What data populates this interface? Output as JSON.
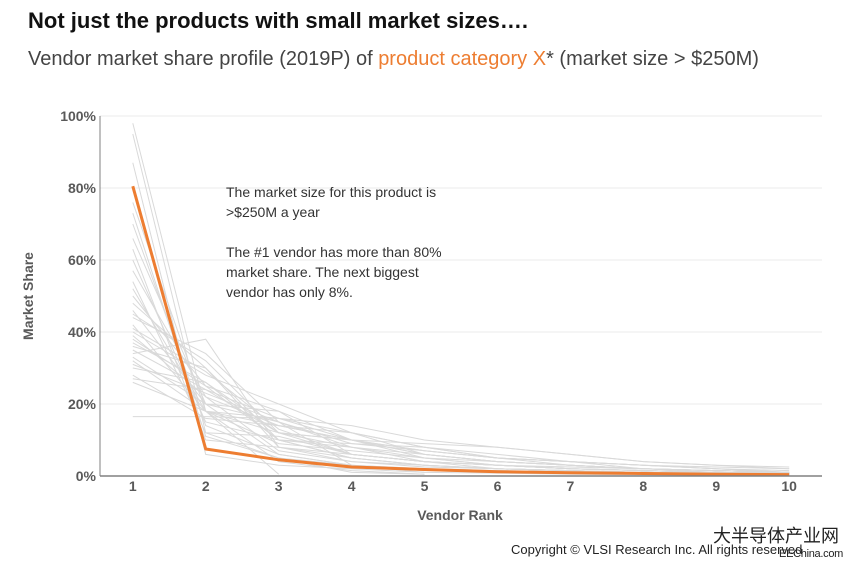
{
  "header": {
    "title": "Not just the products with small market sizes….",
    "subtitle_pre": "Vendor market share profile (2019P) of ",
    "subtitle_highlight": "product category X",
    "subtitle_post": "* (market size > $250M)"
  },
  "annotation": {
    "line1": "The market size for this product is >$250M a year",
    "line2": "The #1 vendor has more than 80% market share. The next biggest vendor has only 8%."
  },
  "footer": {
    "copyright": "Copyright © VLSI Research Inc. All rights reserved",
    "watermark": "大半导体产业网",
    "watermark_sub": "EEChina.com"
  },
  "colors": {
    "highlight": "#ED7D31",
    "background_series": "#D9D9D9",
    "grid": "#EBEBEB",
    "axis": "#808080"
  },
  "chart_data": {
    "type": "line",
    "title": "Vendor market share profile (2019P) of product category X* (market size > $250M)",
    "xlabel": "Vendor Rank",
    "ylabel": "Market Share",
    "x": [
      1,
      2,
      3,
      4,
      5,
      6,
      7,
      8,
      9,
      10
    ],
    "xlim": [
      0.55,
      10.45
    ],
    "ylim": [
      0,
      100
    ],
    "yticks": [
      0,
      20,
      40,
      60,
      80,
      100
    ],
    "ytick_labels": [
      "0%",
      "20%",
      "40%",
      "60%",
      "80%",
      "100%"
    ],
    "xtick_labels": [
      "1",
      "2",
      "3",
      "4",
      "5",
      "6",
      "7",
      "8",
      "9",
      "10"
    ],
    "grid": true,
    "highlight_series": {
      "name": "Product category X",
      "values": [
        80.5,
        7.5,
        4.5,
        2.5,
        1.8,
        1.2,
        0.9,
        0.7,
        0.5,
        0.4
      ]
    },
    "background_series": [
      {
        "values": [
          98,
          18,
          0.5,
          null,
          null,
          null,
          null,
          null,
          null,
          null
        ]
      },
      {
        "values": [
          95,
          12,
          5,
          1,
          0.5,
          null,
          null,
          null,
          null,
          null
        ]
      },
      {
        "values": [
          87,
          6,
          3,
          2,
          1,
          0.8,
          0.5,
          0.3,
          0.2,
          0.1
        ]
      },
      {
        "values": [
          76,
          18,
          4,
          1.5,
          0.5,
          null,
          null,
          null,
          null,
          null
        ]
      },
      {
        "values": [
          73,
          11,
          5,
          3,
          2,
          1.5,
          1.2,
          1,
          0.7,
          0.5
        ]
      },
      {
        "values": [
          70,
          14,
          6,
          3,
          2,
          1.5,
          1,
          0.8,
          0.6,
          0.4
        ]
      },
      {
        "values": [
          66,
          20,
          6,
          3,
          1.5,
          1,
          0.8,
          0.5,
          0.4,
          0.3
        ]
      },
      {
        "values": [
          63,
          10,
          8,
          6,
          4,
          3,
          2,
          1.5,
          1,
          0.8
        ]
      },
      {
        "values": [
          60,
          15,
          10,
          5,
          3,
          2,
          1.5,
          1,
          0.8,
          0.5
        ]
      },
      {
        "values": [
          57,
          22,
          7,
          4,
          2.5,
          2,
          1.5,
          1,
          0.8,
          0.6
        ]
      },
      {
        "values": [
          54,
          12,
          11,
          6,
          4,
          3,
          2,
          1.5,
          1,
          0.8
        ]
      },
      {
        "values": [
          50,
          25,
          10,
          5,
          3,
          2,
          1.5,
          1,
          0.8,
          0.5
        ]
      },
      {
        "values": [
          48,
          30,
          8,
          4,
          3,
          2,
          1.5,
          1,
          0.8,
          0.6
        ]
      },
      {
        "values": [
          46,
          20,
          15,
          8,
          4,
          2,
          1.5,
          1,
          0.8,
          0.5
        ]
      },
      {
        "values": [
          44,
          34,
          15,
          3,
          1,
          null,
          null,
          null,
          null,
          null
        ]
      },
      {
        "values": [
          42,
          18,
          12,
          10,
          5,
          3,
          2,
          1.5,
          1,
          0.8
        ]
      },
      {
        "values": [
          40,
          28,
          20,
          12,
          6,
          4,
          3,
          2,
          1.5,
          1
        ]
      },
      {
        "values": [
          39,
          22,
          14,
          10,
          7,
          5,
          4,
          3,
          2.5,
          2
        ]
      },
      {
        "values": [
          38,
          25,
          18,
          6,
          4,
          3,
          2,
          1.5,
          1,
          0.7
        ]
      },
      {
        "values": [
          37,
          26,
          12,
          8,
          6,
          4,
          3,
          2,
          1.5,
          1
        ]
      },
      {
        "values": [
          36,
          30,
          10,
          8,
          5,
          4,
          3,
          2,
          1.5,
          1
        ]
      },
      {
        "values": [
          35,
          24,
          16,
          10,
          6,
          4,
          3,
          2,
          1,
          0.5
        ]
      },
      {
        "values": [
          34,
          38,
          8,
          5,
          3,
          2,
          1.5,
          1,
          0.5,
          0.3
        ]
      },
      {
        "values": [
          33,
          20,
          18,
          10,
          6,
          4,
          3,
          2,
          1.5,
          1
        ]
      },
      {
        "values": [
          32,
          18,
          14,
          12,
          8,
          5,
          3,
          2,
          1.5,
          1
        ]
      },
      {
        "values": [
          31,
          23,
          15,
          9,
          7,
          5,
          4,
          2,
          1.5,
          1
        ]
      },
      {
        "values": [
          30,
          26,
          10,
          9,
          8,
          6,
          4,
          3,
          2,
          1
        ]
      },
      {
        "values": [
          28,
          16,
          14,
          10,
          9,
          8,
          6,
          4,
          3,
          2
        ]
      },
      {
        "values": [
          27,
          24,
          12,
          10,
          7,
          5,
          4,
          3,
          2,
          1.5
        ]
      },
      {
        "values": [
          26,
          18,
          16,
          12,
          8,
          5,
          4,
          3,
          2,
          1
        ]
      },
      {
        "values": [
          16.5,
          16.5,
          16,
          14,
          10,
          8,
          6,
          4,
          3,
          2.5
        ]
      },
      {
        "values": [
          45,
          32,
          12,
          6,
          4,
          3,
          2,
          1.5,
          1,
          0.5
        ]
      },
      {
        "values": [
          52,
          18,
          9,
          7,
          5,
          3,
          2,
          1.5,
          1,
          0.8
        ]
      },
      {
        "values": [
          41,
          29,
          13,
          6,
          4,
          3,
          2.5,
          2,
          1.5,
          1
        ]
      }
    ]
  }
}
